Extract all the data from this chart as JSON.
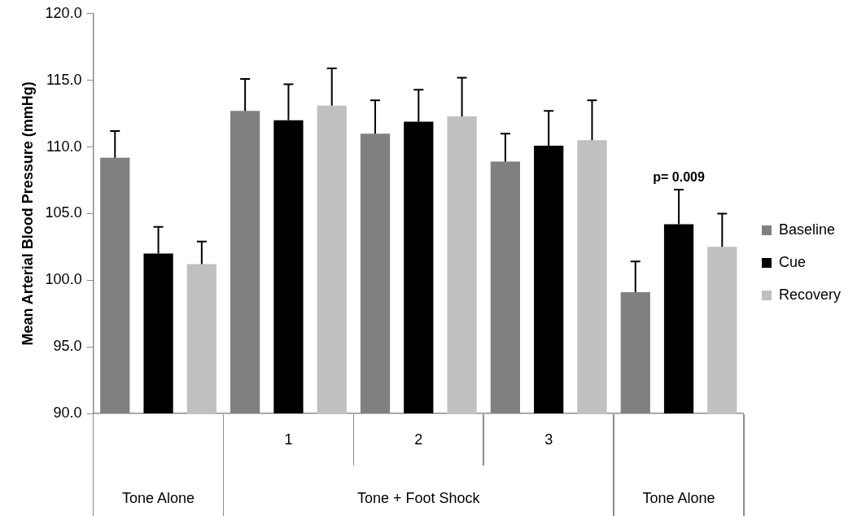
{
  "chart_data": {
    "type": "bar",
    "ylabel": "Mean Arterial Blood Pressure (mmHg)",
    "categories": [
      null,
      "1",
      "2",
      "3",
      null
    ],
    "series": [
      {
        "name": "Baseline",
        "color": "#808080",
        "values": [
          109.2,
          112.7,
          111.0,
          108.9,
          99.1
        ],
        "errors": [
          2.0,
          2.4,
          2.5,
          2.1,
          2.3
        ]
      },
      {
        "name": "Cue",
        "color": "#000000",
        "values": [
          102.0,
          112.0,
          111.9,
          110.1,
          104.2
        ],
        "errors": [
          2.0,
          2.7,
          2.4,
          2.6,
          2.6
        ]
      },
      {
        "name": "Recovery",
        "color": "#c0c0c0",
        "values": [
          101.2,
          113.1,
          112.3,
          110.5,
          102.5
        ],
        "errors": [
          1.7,
          2.8,
          2.9,
          3.0,
          2.5
        ]
      }
    ],
    "ylim": [
      90,
      120
    ],
    "yticks": [
      {
        "value": 90,
        "label": "90.0"
      },
      {
        "value": 95,
        "label": "95.0"
      },
      {
        "value": 100,
        "label": "100.0"
      },
      {
        "value": 105,
        "label": "105.0"
      },
      {
        "value": 110,
        "label": "110.0"
      },
      {
        "value": 115,
        "label": "115.0"
      },
      {
        "value": 120,
        "label": "120.0"
      }
    ],
    "annotations": [
      "Tone Alone",
      "Tone + Foot Shock",
      "Tone Alone",
      "p= 0.009"
    ],
    "legend": "right",
    "grid": false
  }
}
